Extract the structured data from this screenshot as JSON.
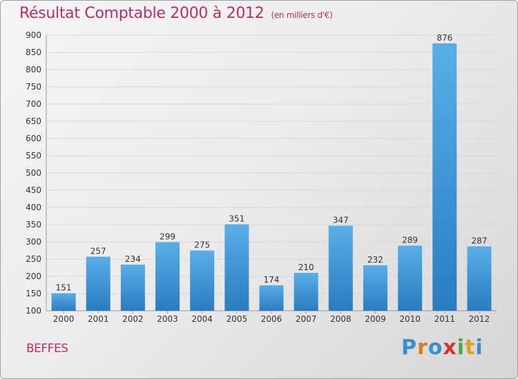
{
  "header": {
    "title": "Résultat Comptable 2000 à 2012",
    "subtitle": "(en milliers d'€)"
  },
  "footer": {
    "commune": "BEFFES",
    "logo": [
      "P",
      "r",
      "o",
      "x",
      "i",
      "t",
      "i"
    ],
    "logo_colors": [
      "#3a8fd0",
      "#e07820",
      "#3a8fd0",
      "#d63030",
      "#4aa848",
      "#e0a020",
      "#3a8fd0"
    ]
  },
  "colors": {
    "bar_top": "#5aaee8",
    "bar_bottom": "#2a7cc0",
    "accent": "#b0306a"
  },
  "chart_data": {
    "type": "bar",
    "title": "Résultat Comptable 2000 à 2012",
    "subtitle": "(en milliers d'€)",
    "categories": [
      "2000",
      "2001",
      "2002",
      "2003",
      "2004",
      "2005",
      "2006",
      "2007",
      "2008",
      "2009",
      "2010",
      "2011",
      "2012"
    ],
    "values": [
      151,
      257,
      234,
      299,
      275,
      351,
      174,
      210,
      347,
      232,
      289,
      876,
      287
    ],
    "xlabel": "",
    "ylabel": "",
    "ylim": [
      100,
      900
    ],
    "yticks": [
      100,
      150,
      200,
      250,
      300,
      350,
      400,
      450,
      500,
      550,
      600,
      650,
      700,
      750,
      800,
      850,
      900
    ],
    "grid": true
  }
}
